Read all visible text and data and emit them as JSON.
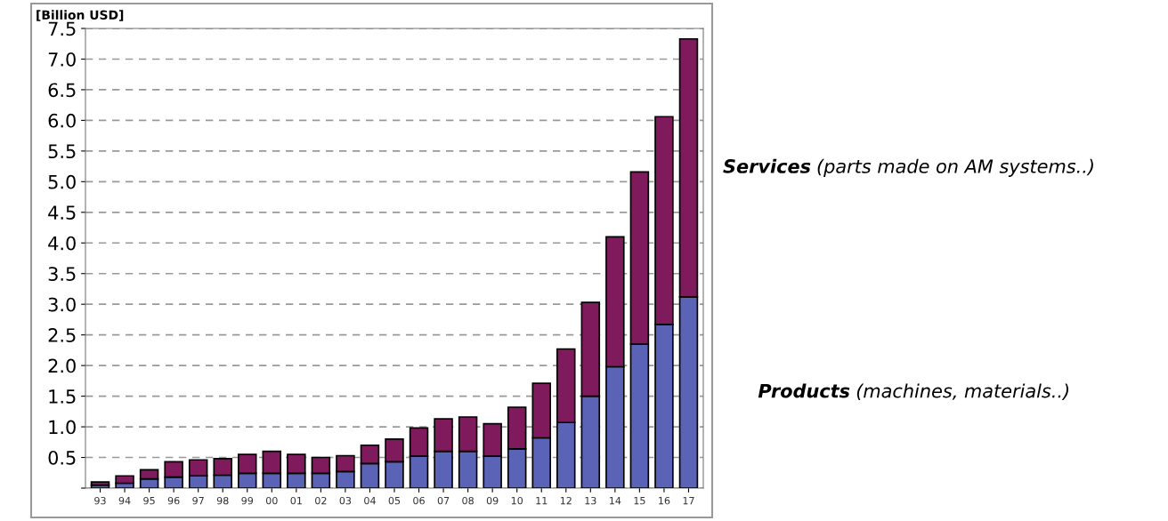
{
  "chart_data": {
    "type": "bar",
    "stacked": true,
    "ylabel": "[Billion USD]",
    "categories": [
      "93",
      "94",
      "95",
      "96",
      "97",
      "98",
      "99",
      "00",
      "01",
      "02",
      "03",
      "04",
      "05",
      "06",
      "07",
      "08",
      "09",
      "10",
      "11",
      "12",
      "13",
      "14",
      "15",
      "16",
      "17"
    ],
    "series": [
      {
        "name": "Products (machines, materials..)",
        "color": "#5b63b7",
        "values": [
          0.05,
          0.08,
          0.15,
          0.18,
          0.2,
          0.21,
          0.24,
          0.24,
          0.24,
          0.24,
          0.27,
          0.4,
          0.43,
          0.52,
          0.6,
          0.6,
          0.52,
          0.64,
          0.82,
          1.07,
          1.5,
          1.98,
          2.35,
          2.67,
          3.12
        ]
      },
      {
        "name": "Services (parts made on AM systems..)",
        "color": "#7f1a5c",
        "values": [
          0.05,
          0.12,
          0.15,
          0.25,
          0.26,
          0.27,
          0.31,
          0.36,
          0.31,
          0.26,
          0.26,
          0.3,
          0.37,
          0.46,
          0.53,
          0.56,
          0.53,
          0.68,
          0.89,
          1.2,
          1.53,
          2.12,
          2.81,
          3.39,
          4.21
        ]
      }
    ],
    "ylim": [
      0,
      7.5
    ],
    "yticks": [
      {
        "value": 0,
        "label": null
      },
      {
        "value": 0.5,
        "label": "0.5"
      },
      {
        "value": 1.0,
        "label": "1.0"
      },
      {
        "value": 1.5,
        "label": "1.5"
      },
      {
        "value": 2.0,
        "label": "2.0"
      },
      {
        "value": 2.5,
        "label": "2.5"
      },
      {
        "value": 3.0,
        "label": "3.0"
      },
      {
        "value": 3.5,
        "label": "3.5"
      },
      {
        "value": 4.0,
        "label": "4.0"
      },
      {
        "value": 4.5,
        "label": "4.5"
      },
      {
        "value": 5.0,
        "label": "5.0"
      },
      {
        "value": 5.5,
        "label": "5.5"
      },
      {
        "value": 6.0,
        "label": "6.0"
      },
      {
        "value": 6.5,
        "label": "6.5"
      },
      {
        "value": 7.0,
        "label": "7.0"
      },
      {
        "value": 7.5,
        "label": "7.5"
      }
    ],
    "grid": "y",
    "legend": "right"
  }
}
